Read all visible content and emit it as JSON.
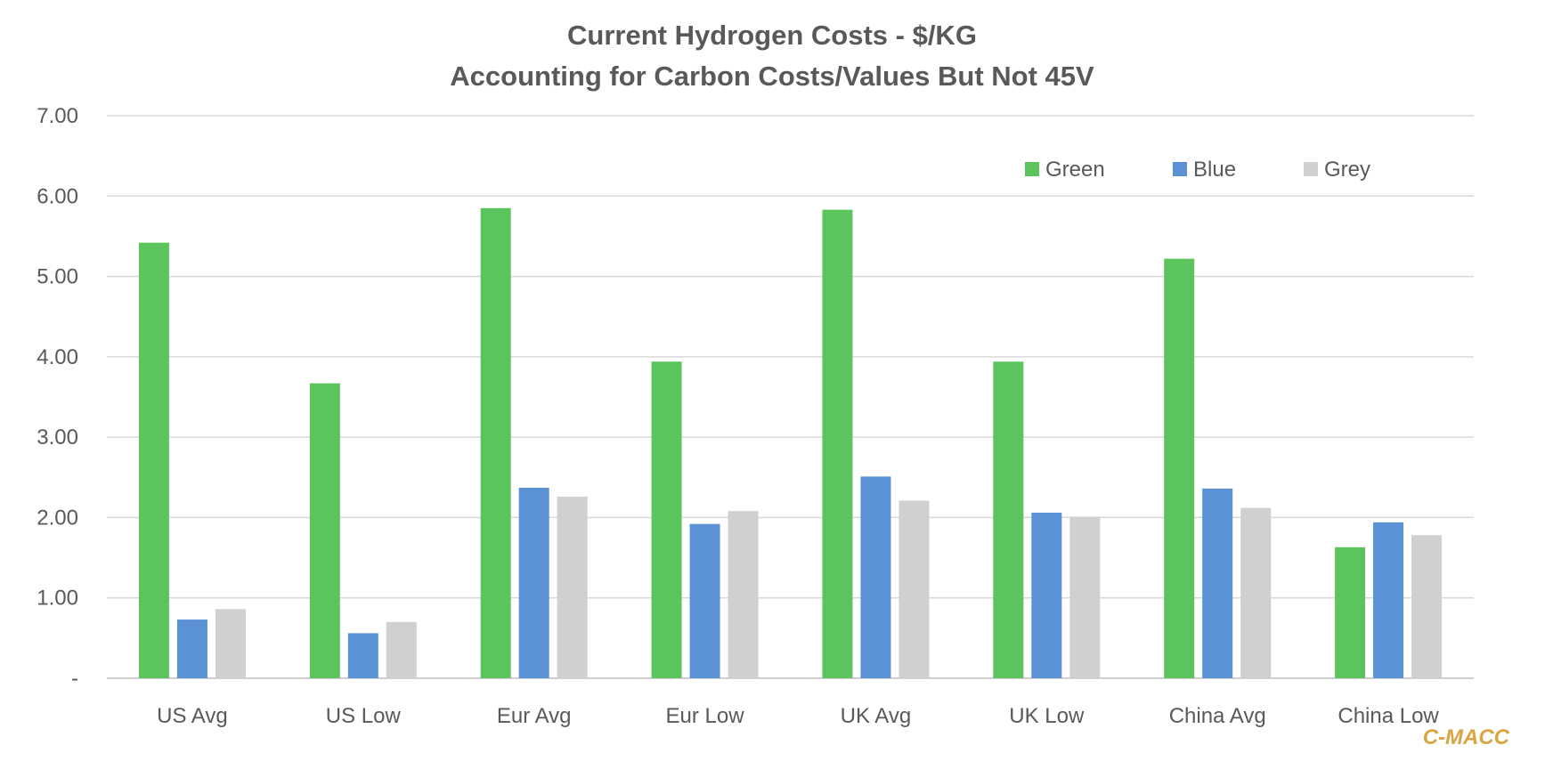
{
  "chart_data": {
    "type": "bar",
    "title": "Current Hydrogen Costs - $/KG",
    "subtitle": "Accounting for Carbon Costs/Values But Not 45V",
    "categories": [
      "US Avg",
      "US Low",
      "Eur Avg",
      "Eur Low",
      "UK Avg",
      "UK Low",
      "China Avg",
      "China Low"
    ],
    "series": [
      {
        "name": "Green",
        "color": "#5CC45C",
        "values": [
          5.42,
          3.67,
          5.85,
          3.94,
          5.83,
          3.94,
          5.22,
          1.63
        ]
      },
      {
        "name": "Blue",
        "color": "#5B92D6",
        "values": [
          0.73,
          0.56,
          2.37,
          1.92,
          2.51,
          2.06,
          2.36,
          1.94
        ]
      },
      {
        "name": "Grey",
        "color": "#D0D0D0",
        "values": [
          0.86,
          0.7,
          2.26,
          2.08,
          2.21,
          2.01,
          2.12,
          1.78
        ]
      }
    ],
    "ylim": [
      0,
      7
    ],
    "yticks": [
      "-",
      "1.00",
      "2.00",
      "3.00",
      "4.00",
      "5.00",
      "6.00",
      "7.00"
    ],
    "grid": true,
    "legend_position": "top-right",
    "xlabel": "",
    "ylabel": ""
  },
  "credit": "C-MACC"
}
